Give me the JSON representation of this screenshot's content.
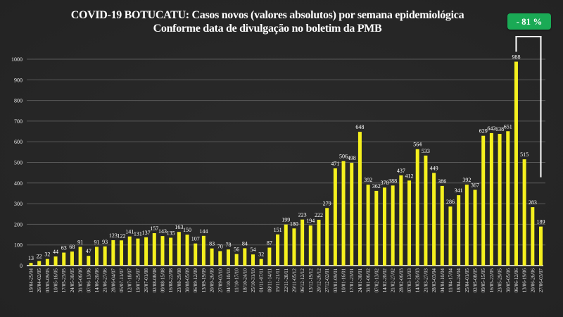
{
  "header": {
    "title_line1": "COVID-19 BOTUCATU: Casos novos (valores absolutos) por semana epidemiológica",
    "title_line2": "Conforme data de divulgação no boletim da PMB"
  },
  "badge": {
    "label": "- 81 %",
    "color": "#1aaa55"
  },
  "chart_data": {
    "type": "bar",
    "title": "COVID-19 BOTUCATU: Casos novos (valores absolutos) por semana epidemiológica",
    "subtitle": "Conforme data de divulgação no boletim da PMB",
    "xlabel": "",
    "ylabel": "",
    "ylim": [
      0,
      1000
    ],
    "yticks": [
      0,
      100,
      200,
      300,
      400,
      500,
      600,
      700,
      800,
      900,
      1000
    ],
    "grid": true,
    "bar_color": "#f5f01e",
    "annotation": {
      "text": "- 81 %",
      "from_category": "06/06-12/06",
      "to_category": "27/06-03/07"
    },
    "categories": [
      "19/04-25/04",
      "26/04-02/05",
      "03/05-09/05",
      "10/05-16/05",
      "17/05-23/05",
      "24/05-30/05",
      "31/05-06/06",
      "07/06-13/06",
      "14/06-20/06",
      "21/06-27/06",
      "28/06-04/07",
      "05/07-11/07",
      "12/07-18/07",
      "19/07-25/07",
      "26/07-01/08",
      "02/08-08/08",
      "09/08-15/08",
      "16/08-22/08",
      "23/08-29/08",
      "30/08-05/09",
      "06/09-12/09",
      "13/09-19/09",
      "20/09-26/09",
      "27/09-03/10",
      "04/10-10/10",
      "11/10-17/10",
      "18/10-24/10",
      "25/10-31/10",
      "01/11-07/11",
      "08/11-14/11",
      "15/11-21/11",
      "22/11-28/11",
      "29/11-05/12",
      "06/12-12/12",
      "13/12-19/12",
      "20/12-26/12",
      "27/12-02/01",
      "03/01-09/01",
      "10/01-16/01",
      "17/01-23/01",
      "24/01-30/01",
      "31/01-06/02",
      "07/02-13/02",
      "14/02-20/02",
      "21/02-27/02",
      "28/02-06/03",
      "07/03-13/03",
      "14/03-20/03",
      "21/03-27/03",
      "28/03-03/04",
      "04/04-10/04",
      "11/04-17/04",
      "18/04-24/04",
      "25/04-01/05",
      "02/05-08/05",
      "09/05-15/05",
      "16/05-22/05",
      "23/05-29/05",
      "30/05-05/06",
      "06/06-12/06",
      "13/06-19/06",
      "20/06-26/06",
      "27/06-03/07"
    ],
    "values": [
      13,
      22,
      32,
      44,
      63,
      68,
      91,
      47,
      91,
      93,
      123,
      122,
      141,
      131,
      137,
      157,
      143,
      135,
      163,
      150,
      107,
      144,
      83,
      70,
      78,
      56,
      84,
      54,
      32,
      87,
      151,
      199,
      180,
      223,
      194,
      222,
      279,
      471,
      506,
      498,
      648,
      392,
      362,
      378,
      388,
      437,
      412,
      564,
      533,
      449,
      386,
      286,
      341,
      392,
      367,
      629,
      642,
      638,
      651,
      988,
      515,
      283,
      189
    ]
  }
}
